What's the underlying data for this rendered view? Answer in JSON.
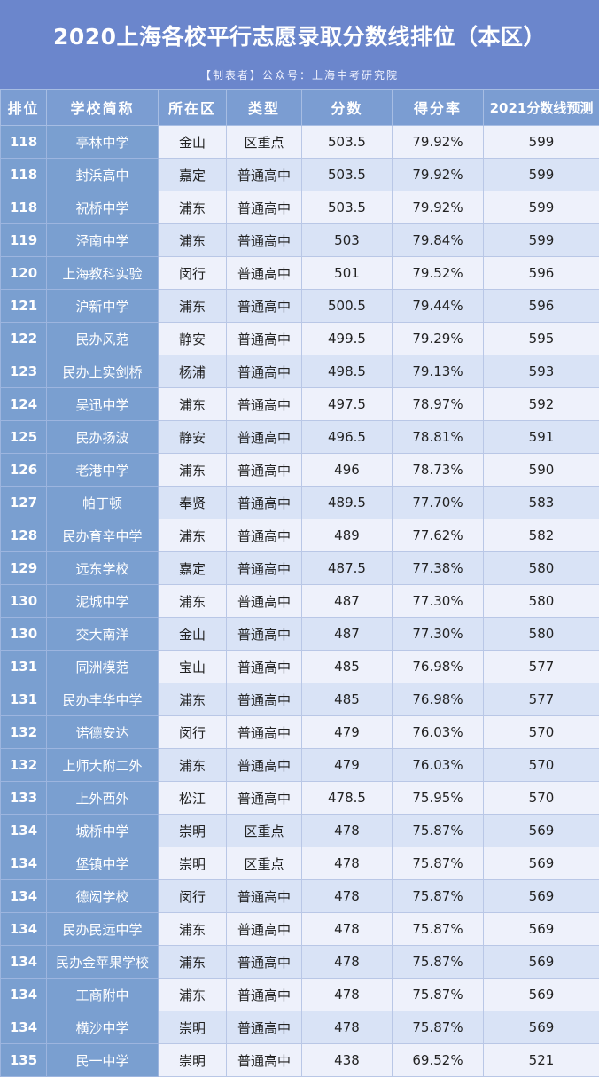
{
  "title": "2020上海各校平行志愿录取分数线排位（本区）",
  "subtitle": "【制表者】公众号：上海中考研究院",
  "headers": [
    "排位",
    "学校简称",
    "所在区",
    "类型",
    "分数",
    "得分率",
    "2021分数线预测"
  ],
  "rows": [
    [
      "118",
      "亭林中学",
      "金山",
      "区重点",
      "503.5",
      "79.92%",
      "599"
    ],
    [
      "118",
      "封浜高中",
      "嘉定",
      "普通高中",
      "503.5",
      "79.92%",
      "599"
    ],
    [
      "118",
      "祝桥中学",
      "浦东",
      "普通高中",
      "503.5",
      "79.92%",
      "599"
    ],
    [
      "119",
      "泾南中学",
      "浦东",
      "普通高中",
      "503",
      "79.84%",
      "599"
    ],
    [
      "120",
      "上海教科实验",
      "闵行",
      "普通高中",
      "501",
      "79.52%",
      "596"
    ],
    [
      "121",
      "沪新中学",
      "浦东",
      "普通高中",
      "500.5",
      "79.44%",
      "596"
    ],
    [
      "122",
      "民办风范",
      "静安",
      "普通高中",
      "499.5",
      "79.29%",
      "595"
    ],
    [
      "123",
      "民办上实剑桥",
      "杨浦",
      "普通高中",
      "498.5",
      "79.13%",
      "593"
    ],
    [
      "124",
      "吴迅中学",
      "浦东",
      "普通高中",
      "497.5",
      "78.97%",
      "592"
    ],
    [
      "125",
      "民办扬波",
      "静安",
      "普通高中",
      "496.5",
      "78.81%",
      "591"
    ],
    [
      "126",
      "老港中学",
      "浦东",
      "普通高中",
      "496",
      "78.73%",
      "590"
    ],
    [
      "127",
      "帕丁顿",
      "奉贤",
      "普通高中",
      "489.5",
      "77.70%",
      "583"
    ],
    [
      "128",
      "民办育辛中学",
      "浦东",
      "普通高中",
      "489",
      "77.62%",
      "582"
    ],
    [
      "129",
      "远东学校",
      "嘉定",
      "普通高中",
      "487.5",
      "77.38%",
      "580"
    ],
    [
      "130",
      "泥城中学",
      "浦东",
      "普通高中",
      "487",
      "77.30%",
      "580"
    ],
    [
      "130",
      "交大南洋",
      "金山",
      "普通高中",
      "487",
      "77.30%",
      "580"
    ],
    [
      "131",
      "同洲模范",
      "宝山",
      "普通高中",
      "485",
      "76.98%",
      "577"
    ],
    [
      "131",
      "民办丰华中学",
      "浦东",
      "普通高中",
      "485",
      "76.98%",
      "577"
    ],
    [
      "132",
      "诺德安达",
      "闵行",
      "普通高中",
      "479",
      "76.03%",
      "570"
    ],
    [
      "132",
      "上师大附二外",
      "浦东",
      "普通高中",
      "479",
      "76.03%",
      "570"
    ],
    [
      "133",
      "上外西外",
      "松江",
      "普通高中",
      "478.5",
      "75.95%",
      "570"
    ],
    [
      "134",
      "城桥中学",
      "崇明",
      "区重点",
      "478",
      "75.87%",
      "569"
    ],
    [
      "134",
      "堡镇中学",
      "崇明",
      "区重点",
      "478",
      "75.87%",
      "569"
    ],
    [
      "134",
      "德闳学校",
      "闵行",
      "普通高中",
      "478",
      "75.87%",
      "569"
    ],
    [
      "134",
      "民办民远中学",
      "浦东",
      "普通高中",
      "478",
      "75.87%",
      "569"
    ],
    [
      "134",
      "民办金苹果学校",
      "浦东",
      "普通高中",
      "478",
      "75.87%",
      "569"
    ],
    [
      "134",
      "工商附中",
      "浦东",
      "普通高中",
      "478",
      "75.87%",
      "569"
    ],
    [
      "134",
      "横沙中学",
      "崇明",
      "普通高中",
      "478",
      "75.87%",
      "569"
    ],
    [
      "135",
      "民一中学",
      "崇明",
      "普通高中",
      "438",
      "69.52%",
      "521"
    ]
  ]
}
